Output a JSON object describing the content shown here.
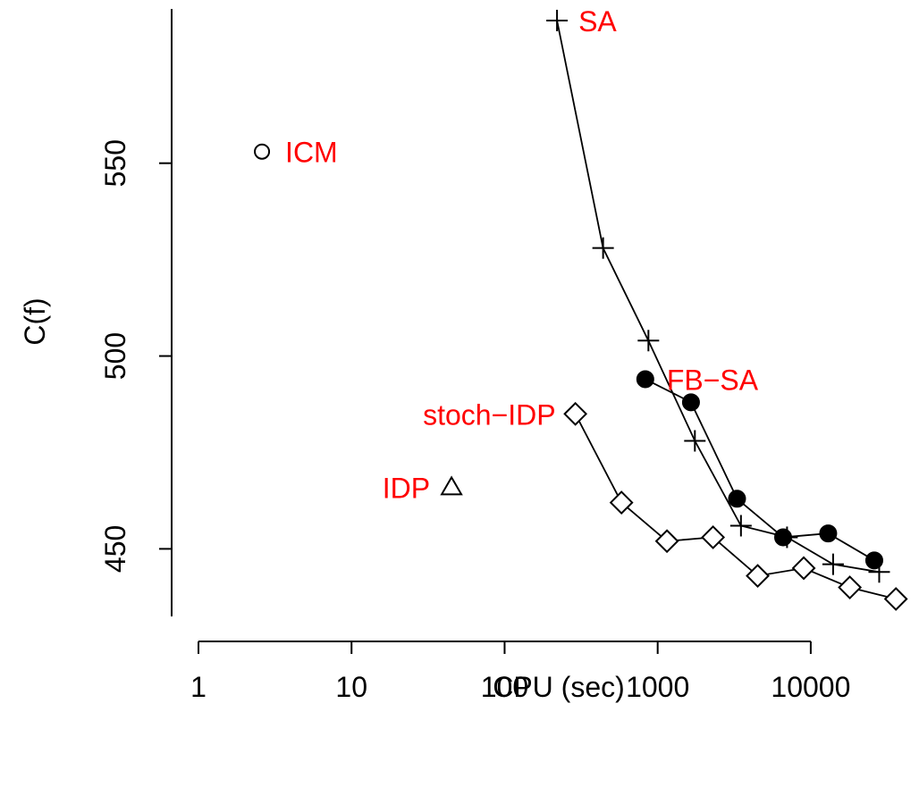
{
  "chart_data": {
    "type": "scatter",
    "title": "",
    "xlabel": "CPU (sec)",
    "ylabel": "C(f)",
    "x_scale": "log",
    "xlim": [
      1,
      40000
    ],
    "ylim": [
      426,
      590
    ],
    "x_ticks": [
      1,
      10,
      100,
      1000,
      10000
    ],
    "x_tick_labels": [
      "1",
      "10",
      "100",
      "1000",
      "10000"
    ],
    "y_ticks": [
      450,
      500,
      550
    ],
    "y_tick_labels": [
      "450",
      "500",
      "550"
    ],
    "grid": false,
    "label_color": "#ff0000",
    "series": [
      {
        "name": "SA",
        "marker": "plus",
        "connected": true,
        "x": [
          220,
          440,
          870,
          1750,
          3500,
          7000,
          14000,
          28000
        ],
        "y": [
          587,
          528,
          504,
          478,
          456,
          453,
          446,
          444
        ]
      },
      {
        "name": "FB−SA",
        "marker": "filled-circle",
        "connected": true,
        "x": [
          830,
          1650,
          3300,
          6600,
          13000,
          26000
        ],
        "y": [
          494,
          488,
          463,
          453,
          454,
          447
        ]
      },
      {
        "name": "stoch−IDP",
        "marker": "diamond",
        "connected": true,
        "x": [
          290,
          580,
          1150,
          2300,
          4500,
          9000,
          18000,
          36000
        ],
        "y": [
          485,
          462,
          452,
          453,
          443,
          445,
          440,
          437
        ]
      },
      {
        "name": "ICM",
        "marker": "open-circle",
        "connected": false,
        "x": [
          2.6
        ],
        "y": [
          553
        ]
      },
      {
        "name": "IDP",
        "marker": "triangle",
        "connected": false,
        "x": [
          45
        ],
        "y": [
          466
        ]
      }
    ]
  }
}
